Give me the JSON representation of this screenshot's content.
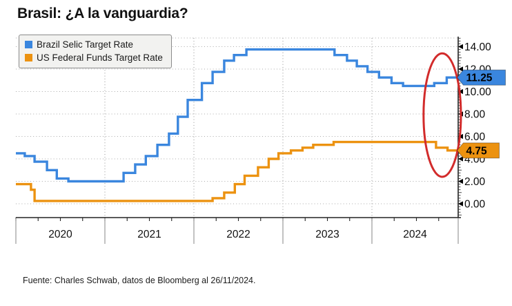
{
  "title": "Brasil: ¿A la vanguardia?",
  "footer": "Fuente: Charles Schwab, datos de Bloomberg al 26/11/2024.",
  "colors": {
    "selic_blue": "#3a86de",
    "fed_orange": "#ec9210",
    "annotation_red": "#d22b2b",
    "grid": "#aaaaaa",
    "axis": "#222222",
    "legend_bg": "#f2f2f0"
  },
  "legend": {
    "items": [
      {
        "label": "Brazil Selic Target Rate",
        "color": "#3a86de"
      },
      {
        "label": "US Federal Funds Target Rate",
        "color": "#ec9210"
      }
    ]
  },
  "chart_data": {
    "type": "line",
    "step": true,
    "title": "Brasil: ¿A la vanguardia?",
    "x_axis": {
      "range": [
        2020.0,
        2024.97
      ],
      "year_ticks": [
        2020,
        2021,
        2022,
        2023,
        2024
      ],
      "labels": [
        "2020",
        "2021",
        "2022",
        "2023",
        "2024"
      ]
    },
    "y_axis": {
      "side": "right",
      "ticks": [
        0,
        2,
        4,
        6,
        8,
        10,
        12,
        14
      ],
      "tick_labels": [
        "0.00",
        "2.00",
        "4.00",
        "6.00",
        "8.00",
        "10.00",
        "12.00",
        "14.00"
      ],
      "range_top_value": 14.8,
      "range_bottom_value": -1.2,
      "grid": "dotted"
    },
    "series": [
      {
        "name": "Brazil Selic Target Rate",
        "color": "#3a86de",
        "end_label": "11.25",
        "end_value": 11.25,
        "points": [
          [
            2020.0,
            4.5
          ],
          [
            2020.1,
            4.25
          ],
          [
            2020.21,
            3.75
          ],
          [
            2020.35,
            3.0
          ],
          [
            2020.46,
            2.25
          ],
          [
            2020.59,
            2.0
          ],
          [
            2021.21,
            2.75
          ],
          [
            2021.34,
            3.5
          ],
          [
            2021.46,
            4.25
          ],
          [
            2021.59,
            5.25
          ],
          [
            2021.72,
            6.25
          ],
          [
            2021.82,
            7.75
          ],
          [
            2021.93,
            9.25
          ],
          [
            2022.09,
            10.75
          ],
          [
            2022.21,
            11.75
          ],
          [
            2022.34,
            12.75
          ],
          [
            2022.45,
            13.25
          ],
          [
            2022.59,
            13.75
          ],
          [
            2023.58,
            13.25
          ],
          [
            2023.72,
            12.75
          ],
          [
            2023.83,
            12.25
          ],
          [
            2023.95,
            11.75
          ],
          [
            2024.08,
            11.25
          ],
          [
            2024.22,
            10.75
          ],
          [
            2024.35,
            10.5
          ],
          [
            2024.7,
            10.75
          ],
          [
            2024.84,
            11.25
          ]
        ]
      },
      {
        "name": "US Federal Funds Target Rate",
        "color": "#ec9210",
        "end_label": "4.75",
        "end_value": 4.75,
        "points": [
          [
            2020.0,
            1.75
          ],
          [
            2020.17,
            1.25
          ],
          [
            2020.21,
            0.25
          ],
          [
            2022.21,
            0.5
          ],
          [
            2022.34,
            1.0
          ],
          [
            2022.46,
            1.75
          ],
          [
            2022.57,
            2.5
          ],
          [
            2022.72,
            3.25
          ],
          [
            2022.84,
            4.0
          ],
          [
            2022.95,
            4.5
          ],
          [
            2023.09,
            4.75
          ],
          [
            2023.22,
            5.0
          ],
          [
            2023.34,
            5.25
          ],
          [
            2023.57,
            5.5
          ],
          [
            2024.72,
            5.0
          ],
          [
            2024.85,
            4.75
          ]
        ]
      }
    ],
    "annotation": {
      "type": "ellipse",
      "center_x_year": 2024.79,
      "center_y_value": 7.9,
      "rx_years": 0.21,
      "ry_units": 5.5,
      "color": "#d22b2b",
      "meaning": "circles late-2024 divergence: Selic rising while Fed funds falling"
    }
  }
}
